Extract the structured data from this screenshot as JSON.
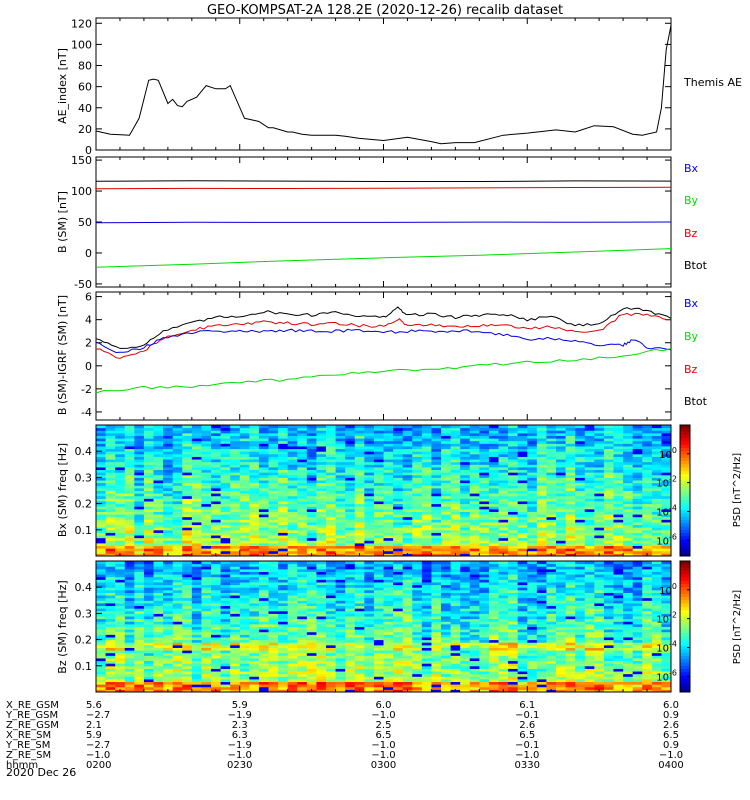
{
  "title": "GEO-KOMPSAT-2A 128.2E (2020-12-26) recalib dataset",
  "colors": {
    "black": "#000000",
    "red": "#e00000",
    "green": "#00dd00",
    "blue": "#0000dd"
  },
  "chart_data": [
    {
      "type": "line",
      "panel": "ae",
      "ylabel": "AE_index [nT]",
      "yticks": [
        "0",
        "20",
        "40",
        "60",
        "80",
        "100",
        "120"
      ],
      "ylim": [
        0,
        125
      ],
      "xlim_minutes": [
        0,
        120
      ],
      "right_label": "Themis AE",
      "series": [
        {
          "name": "Themis AE",
          "color": "black",
          "x": [
            0,
            3,
            7,
            9,
            11,
            12,
            13,
            15,
            16,
            17,
            18,
            19,
            21,
            23,
            25,
            27,
            28,
            31,
            33,
            34,
            36,
            37,
            40,
            41,
            43,
            45,
            47,
            50,
            52,
            55,
            60,
            65,
            70,
            72,
            75,
            79,
            85,
            90,
            96,
            100,
            104,
            108,
            112,
            114,
            117,
            118,
            119,
            120
          ],
          "y": [
            18,
            15,
            14,
            30,
            66,
            67,
            66,
            44,
            48,
            42,
            41,
            46,
            50,
            61,
            58,
            58,
            61,
            30,
            28,
            27,
            21,
            21,
            17,
            17,
            15,
            14,
            14,
            14,
            13,
            11,
            9,
            12,
            8,
            6,
            7,
            7,
            14,
            16,
            19,
            17,
            23,
            22,
            15,
            14,
            17,
            40,
            95,
            118
          ]
        }
      ]
    },
    {
      "type": "line",
      "panel": "b",
      "ylabel": "B (SM) [nT]",
      "yticks": [
        "-50",
        "0",
        "50",
        "100",
        "150"
      ],
      "ylim": [
        -55,
        155
      ],
      "xlim_minutes": [
        0,
        120
      ],
      "legend": [
        "Bx",
        "By",
        "Bz",
        "Btot"
      ],
      "series": [
        {
          "name": "Btot",
          "color": "black",
          "x": [
            0,
            120
          ],
          "y": [
            116,
            116
          ]
        },
        {
          "name": "Bz",
          "color": "red",
          "x": [
            0,
            120
          ],
          "y": [
            104,
            106
          ]
        },
        {
          "name": "Bx",
          "color": "blue",
          "x": [
            0,
            120
          ],
          "y": [
            49,
            50
          ]
        },
        {
          "name": "By",
          "color": "green",
          "x": [
            0,
            120
          ],
          "y": [
            -23,
            7
          ]
        }
      ]
    },
    {
      "type": "line",
      "panel": "dbigrf",
      "ylabel": "B (SM)-IGRF (SM) [nT]",
      "yticks": [
        "-4",
        "-2",
        "0",
        "2",
        "4",
        "6"
      ],
      "ylim": [
        -4.7,
        6.4
      ],
      "xlim_minutes": [
        0,
        120
      ],
      "legend": [
        "Bx",
        "By",
        "Bz",
        "Btot"
      ],
      "series": [
        {
          "name": "Btot",
          "color": "black",
          "x": [
            0,
            5,
            10,
            14,
            20,
            25,
            30,
            35,
            40,
            45,
            50,
            55,
            60,
            63,
            65,
            70,
            75,
            80,
            85,
            90,
            95,
            100,
            105,
            110,
            115,
            120
          ],
          "y": [
            2.4,
            1.5,
            1.8,
            3.0,
            3.7,
            4.2,
            4.3,
            4.7,
            4.5,
            4.4,
            4.7,
            4.3,
            4.2,
            5.0,
            4.4,
            4.5,
            4.2,
            4.4,
            4.5,
            4.0,
            4.3,
            3.5,
            3.6,
            5.0,
            4.8,
            4.1
          ]
        },
        {
          "name": "Bz",
          "color": "red",
          "x": [
            0,
            5,
            10,
            14,
            20,
            25,
            30,
            35,
            40,
            45,
            50,
            55,
            60,
            63,
            65,
            70,
            75,
            80,
            85,
            90,
            95,
            100,
            105,
            110,
            115,
            120
          ],
          "y": [
            1.5,
            0.6,
            1.3,
            2.4,
            3.1,
            3.5,
            3.6,
            3.8,
            3.7,
            3.6,
            3.7,
            3.5,
            3.4,
            4.1,
            3.5,
            3.6,
            3.4,
            3.5,
            3.6,
            3.2,
            3.4,
            2.9,
            3.0,
            4.5,
            4.4,
            4.0
          ]
        },
        {
          "name": "Bx",
          "color": "blue",
          "x": [
            0,
            5,
            10,
            14,
            20,
            25,
            30,
            35,
            40,
            45,
            50,
            55,
            60,
            65,
            70,
            75,
            80,
            85,
            90,
            95,
            100,
            105,
            110,
            112,
            115,
            120
          ],
          "y": [
            2.1,
            1.1,
            1.6,
            2.4,
            2.9,
            3.0,
            3.0,
            3.0,
            3.1,
            3.0,
            3.0,
            3.1,
            2.9,
            3.0,
            3.0,
            3.0,
            3.0,
            2.7,
            2.3,
            2.4,
            2.1,
            1.8,
            1.8,
            2.3,
            1.6,
            1.4
          ]
        },
        {
          "name": "By",
          "color": "green",
          "x": [
            0,
            10,
            20,
            30,
            40,
            50,
            60,
            70,
            80,
            90,
            100,
            110,
            120
          ],
          "y": [
            -2.3,
            -1.9,
            -1.8,
            -1.4,
            -1.2,
            -0.8,
            -0.4,
            -0.3,
            0.0,
            0.3,
            0.5,
            0.9,
            1.5
          ]
        }
      ]
    },
    {
      "type": "heatmap",
      "panel": "bx_psd",
      "ylabel": "Bx (SM) freq [Hz]",
      "yticks": [
        "0.1",
        "0.2",
        "0.3",
        "0.4"
      ],
      "ylim": [
        0,
        0.5
      ],
      "colorbar_label": "PSD [nT^2/Hz]",
      "colorbar_ticks": [
        "10^0",
        "10^-2",
        "10^-4",
        "10^-6"
      ]
    },
    {
      "type": "heatmap",
      "panel": "bz_psd",
      "ylabel": "Bz (SM) freq [Hz]",
      "yticks": [
        "0.1",
        "0.2",
        "0.3",
        "0.4"
      ],
      "ylim": [
        0,
        0.5
      ],
      "colorbar_label": "PSD [nT^2/Hz]",
      "colorbar_ticks": [
        "10^0",
        "10^-2",
        "10^-4",
        "10^-6"
      ]
    }
  ],
  "xaxis": {
    "rows": [
      {
        "label": "X_RE_GSM",
        "values": [
          "5.6",
          "5.9",
          "6.0",
          "6.1",
          "6.0"
        ]
      },
      {
        "label": "Y_RE_GSM",
        "values": [
          "−2.7",
          "−1.9",
          "−1.0",
          "−0.1",
          "0.9"
        ]
      },
      {
        "label": "Z_RE_GSM",
        "values": [
          "2.1",
          "2.3",
          "2.5",
          "2.6",
          "2.6"
        ]
      },
      {
        "label": "X_RE_SM",
        "values": [
          "5.9",
          "6.3",
          "6.5",
          "6.5",
          "6.5"
        ]
      },
      {
        "label": "Y_RE_SM",
        "values": [
          "−2.7",
          "−1.9",
          "−1.0",
          "−0.1",
          "0.9"
        ]
      },
      {
        "label": "Z_RE_SM",
        "values": [
          "−1.0",
          "−1.0",
          "−1.0",
          "−1.0",
          "−1.0"
        ]
      },
      {
        "label": "hhmm",
        "values": [
          "0200",
          "0230",
          "0300",
          "0330",
          "0400"
        ]
      }
    ],
    "date": "2020 Dec 26"
  }
}
